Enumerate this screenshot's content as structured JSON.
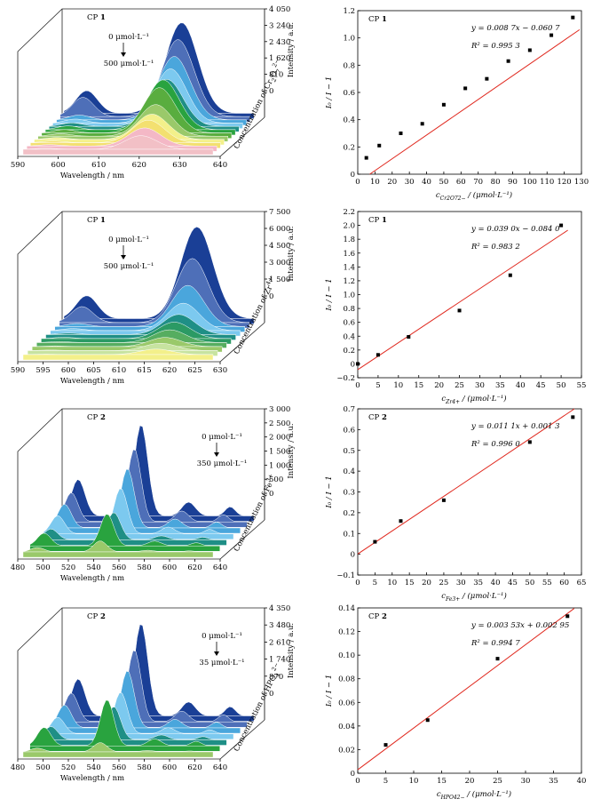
{
  "chart_data": [
    {
      "type": "area",
      "panel": "3d-spectra",
      "sample_label": "CP",
      "sample_number": "1",
      "x_ticks": [
        "590",
        "600",
        "610",
        "620",
        "630",
        "640"
      ],
      "x_range": [
        590,
        640
      ],
      "xlabel": "Wavelength / nm",
      "z_ticks": [
        "4 050",
        "3 240",
        "2 430",
        "1 620",
        "810",
        "0"
      ],
      "zlabel": "Intensity / a.u.",
      "depth_label_prefix": "Concentration of Cr",
      "depth_label_sub": "2",
      "depth_label_mid": "O",
      "depth_label_sub2": "7",
      "depth_label_sup": "2−",
      "annot_top": "0 μmol·L⁻¹",
      "annot_bottom": "500 μmol·L⁻¹",
      "series_colors": [
        "#1a3f96",
        "#4e6fb8",
        "#4aa6dc",
        "#7cc9ef",
        "#1f8f86",
        "#29a33f",
        "#59ad3f",
        "#9ac96a",
        "#f3f08a",
        "#f3e070",
        "#f4b8c6",
        "#f2c0c6"
      ],
      "series_peak": [
        1.0,
        0.85,
        0.7,
        0.6,
        0.52,
        0.55,
        0.5,
        0.35,
        0.28,
        0.25,
        0.2,
        0.15
      ],
      "peak_wavelength": 621
    },
    {
      "type": "scatter",
      "panel": "linear-fit",
      "sample_label": "CP",
      "sample_number": "1",
      "equation": "y = 0.008 7x − 0.060 7",
      "r2": "R² = 0.995 3",
      "x": [
        5,
        12.5,
        25,
        37.5,
        50,
        62.5,
        75,
        87.5,
        100,
        112.5,
        125
      ],
      "y": [
        0.12,
        0.21,
        0.3,
        0.37,
        0.51,
        0.63,
        0.7,
        0.83,
        0.91,
        1.02,
        1.15
      ],
      "fit": [
        0.0087,
        -0.0607
      ],
      "xlim": [
        0,
        130
      ],
      "ylim": [
        0,
        1.2
      ],
      "x_ticks": [
        "0",
        "10",
        "20",
        "30",
        "40",
        "50",
        "60",
        "70",
        "80",
        "90",
        "100",
        "110",
        "120",
        "130"
      ],
      "y_ticks": [
        "0",
        "0.2",
        "0.4",
        "0.6",
        "0.8",
        "1.0",
        "1.2"
      ],
      "xlabel_prefix": "c",
      "xlabel_sub": "Cr2O72−",
      "xlabel_suffix": " / (μmol·L⁻¹)",
      "ylabel": "I₀ / I − 1"
    },
    {
      "type": "area",
      "panel": "3d-spectra",
      "sample_label": "CP",
      "sample_number": "1",
      "x_ticks": [
        "590",
        "595",
        "600",
        "605",
        "610",
        "615",
        "620",
        "625",
        "630"
      ],
      "x_range": [
        590,
        630
      ],
      "xlabel": "Wavelength / nm",
      "z_ticks": [
        "7 500",
        "6 000",
        "4 500",
        "3 000",
        "1 500",
        "0"
      ],
      "zlabel": "Intensity / a.u.",
      "depth_label_prefix": "Concentration of Zr",
      "depth_label_sub": "",
      "depth_label_mid": "",
      "depth_label_sub2": "",
      "depth_label_sup": "4+",
      "annot_top": "0 μmol·L⁻¹",
      "annot_bottom": "500 μmol·L⁻¹",
      "series_colors": [
        "#1a3f96",
        "#4e6fb8",
        "#4aa6dc",
        "#7cc9ef",
        "#1f8f86",
        "#2b9a64",
        "#56ad60",
        "#9ac96a",
        "#c7e3a0",
        "#f3f08a"
      ],
      "series_peak": [
        1.0,
        0.7,
        0.45,
        0.3,
        0.22,
        0.18,
        0.14,
        0.1,
        0.08,
        0.06
      ],
      "peak_wavelength": 618
    },
    {
      "type": "scatter",
      "panel": "linear-fit",
      "sample_label": "CP",
      "sample_number": "1",
      "equation": "y = 0.039 0x − 0.084 0",
      "r2": "R² = 0.983 2",
      "x": [
        0,
        5,
        12.5,
        25,
        37.5,
        50
      ],
      "y": [
        0.0,
        0.13,
        0.39,
        0.77,
        1.28,
        2.0
      ],
      "fit": [
        0.039,
        -0.084
      ],
      "xlim": [
        0,
        55
      ],
      "ylim": [
        -0.2,
        2.2
      ],
      "x_ticks": [
        "0",
        "5",
        "10",
        "15",
        "20",
        "25",
        "30",
        "35",
        "40",
        "45",
        "50",
        "55"
      ],
      "y_ticks": [
        "−0.2",
        "0",
        "0.2",
        "0.4",
        "0.6",
        "0.8",
        "1.0",
        "1.2",
        "1.4",
        "1.6",
        "1.8",
        "2.0",
        "2.2"
      ],
      "xlabel_prefix": "c",
      "xlabel_sub": "Zr4+",
      "xlabel_suffix": " / (μmol·L⁻¹)",
      "ylabel": "I₀ / I − 1"
    },
    {
      "type": "area",
      "panel": "3d-spectra",
      "sample_label": "CP",
      "sample_number": "2",
      "x_ticks": [
        "480",
        "500",
        "520",
        "540",
        "560",
        "580",
        "600",
        "620",
        "640"
      ],
      "x_range": [
        480,
        640
      ],
      "xlabel": "Wavelength / nm",
      "z_ticks": [
        "3 000",
        "2 500",
        "2 000",
        "1 500",
        "1 000",
        "500",
        "0"
      ],
      "zlabel": "Intensity / a.u.",
      "depth_label_prefix": "Concentration of Fe",
      "depth_label_sub": "",
      "depth_label_mid": "",
      "depth_label_sub2": "",
      "depth_label_sup": "3+",
      "annot_top": "0 μmol·L⁻¹",
      "annot_bottom": "350 μmol·L⁻¹",
      "series_colors": [
        "#1a3f96",
        "#4e6fb8",
        "#4aa6dc",
        "#7cc9ef",
        "#1f8f86",
        "#29a33f",
        "#9ac96a"
      ],
      "series_peak": [
        1.0,
        0.8,
        0.65,
        0.5,
        0.3,
        0.35,
        0.12
      ],
      "peak_wavelength": 545
    },
    {
      "type": "scatter",
      "panel": "linear-fit",
      "sample_label": "CP",
      "sample_number": "2",
      "equation": "y = 0.011 1x + 0.001 3",
      "r2": "R² = 0.996 0",
      "x": [
        5,
        12.5,
        25,
        50,
        62.5
      ],
      "y": [
        0.06,
        0.16,
        0.26,
        0.54,
        0.66
      ],
      "fit": [
        0.0111,
        0.0013
      ],
      "xlim": [
        0,
        65
      ],
      "ylim": [
        -0.1,
        0.7
      ],
      "x_ticks": [
        "0",
        "5",
        "10",
        "15",
        "20",
        "25",
        "30",
        "35",
        "40",
        "45",
        "50",
        "55",
        "60",
        "65"
      ],
      "y_ticks": [
        "−0.1",
        "0",
        "0.1",
        "0.2",
        "0.3",
        "0.4",
        "0.5",
        "0.6",
        "0.7"
      ],
      "xlabel_prefix": "c",
      "xlabel_sub": "Fe3+",
      "xlabel_suffix": " / (μmol·L⁻¹)",
      "ylabel": "I₀ / I − 1"
    },
    {
      "type": "area",
      "panel": "3d-spectra",
      "sample_label": "CP",
      "sample_number": "2",
      "x_ticks": [
        "480",
        "500",
        "520",
        "540",
        "560",
        "580",
        "600",
        "620",
        "640"
      ],
      "x_range": [
        480,
        640
      ],
      "xlabel": "Wavelength / nm",
      "z_ticks": [
        "4 350",
        "3 480",
        "2 610",
        "1 740",
        "870",
        "0"
      ],
      "zlabel": "Intensity / a.u.",
      "depth_label_prefix": "Concentration of HPO",
      "depth_label_sub": "4",
      "depth_label_mid": "",
      "depth_label_sub2": "",
      "depth_label_sup": "2−",
      "annot_top": "0 μmol·L⁻¹",
      "annot_bottom": "35 μmol·L⁻¹",
      "series_colors": [
        "#1a3f96",
        "#4e6fb8",
        "#4aa6dc",
        "#7cc9ef",
        "#1f8f86",
        "#29a33f",
        "#9ac96a"
      ],
      "series_peak": [
        1.0,
        0.78,
        0.62,
        0.45,
        0.36,
        0.5,
        0.1
      ],
      "peak_wavelength": 545
    },
    {
      "type": "scatter",
      "panel": "linear-fit",
      "sample_label": "CP",
      "sample_number": "2",
      "equation": "y = 0.003 53x + 0.002 95",
      "r2": "R² = 0.994 7",
      "x": [
        5,
        12.5,
        25,
        37.5
      ],
      "y": [
        0.024,
        0.045,
        0.097,
        0.133
      ],
      "fit": [
        0.00353,
        0.00295
      ],
      "xlim": [
        0,
        40
      ],
      "ylim": [
        0,
        0.14
      ],
      "x_ticks": [
        "0",
        "5",
        "10",
        "15",
        "20",
        "25",
        "30",
        "35",
        "40"
      ],
      "y_ticks": [
        "0",
        "0.02",
        "0.04",
        "0.06",
        "0.08",
        "0.10",
        "0.12",
        "0.14"
      ],
      "xlabel_prefix": "c",
      "xlabel_sub": "HPO42−",
      "xlabel_suffix": " / (μmol·L⁻¹)",
      "ylabel": "I₀ / I − 1"
    }
  ]
}
